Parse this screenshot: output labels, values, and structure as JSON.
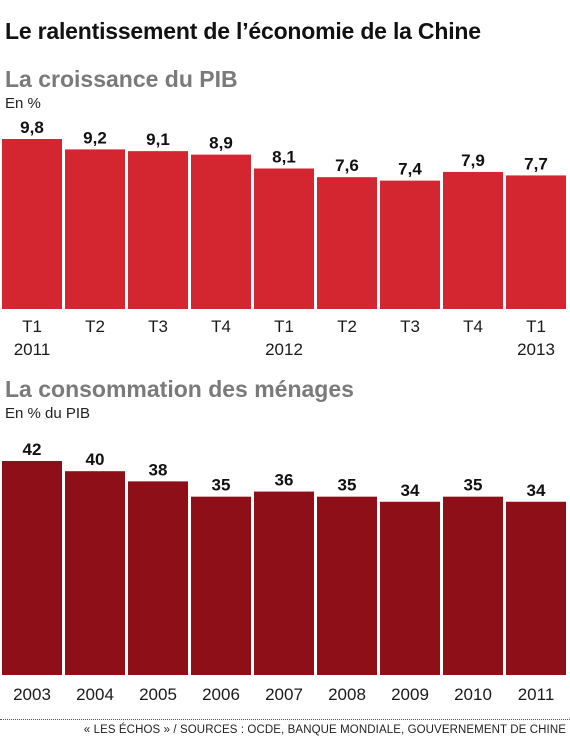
{
  "title": "Le ralentissement de l’économie de la Chine",
  "source": "« LES ÉCHOS » / SOURCES : OCDE, BANQUE MONDIALE, GOUVERNEMENT DE CHINE",
  "colors": {
    "gdp_bar": "#d42630",
    "consumption_bar": "#8e0f18",
    "subtitle": "#7a7a7a"
  },
  "chart_data": [
    {
      "type": "bar",
      "title": "La croissance du PIB",
      "ylabel": "En %",
      "categories": [
        "T1 2011",
        "T2",
        "T3",
        "T4",
        "T1 2012",
        "T2",
        "T3",
        "T4",
        "T1 2013"
      ],
      "tick_labels": [
        [
          "T1",
          "2011"
        ],
        [
          "T2",
          ""
        ],
        [
          "T3",
          ""
        ],
        [
          "T4",
          ""
        ],
        [
          "T1",
          "2012"
        ],
        [
          "T2",
          ""
        ],
        [
          "T3",
          ""
        ],
        [
          "T4",
          ""
        ],
        [
          "T1",
          "2013"
        ]
      ],
      "values": [
        9.8,
        9.2,
        9.1,
        8.9,
        8.1,
        7.6,
        7.4,
        7.9,
        7.7
      ],
      "value_labels": [
        "9,8",
        "9,2",
        "9,1",
        "8,9",
        "8,1",
        "7,6",
        "7,4",
        "7,9",
        "7,7"
      ],
      "ylim": [
        0,
        9.8
      ],
      "grid": false
    },
    {
      "type": "bar",
      "title": "La consommation des ménages",
      "ylabel": "En % du PIB",
      "categories": [
        "2003",
        "2004",
        "2005",
        "2006",
        "2007",
        "2008",
        "2009",
        "2010",
        "2011"
      ],
      "tick_labels": [
        [
          "2003"
        ],
        [
          "2004"
        ],
        [
          "2005"
        ],
        [
          "2006"
        ],
        [
          "2007"
        ],
        [
          "2008"
        ],
        [
          "2009"
        ],
        [
          "2010"
        ],
        [
          "2011"
        ]
      ],
      "values": [
        42,
        40,
        38,
        35,
        36,
        35,
        34,
        35,
        34
      ],
      "value_labels": [
        "42",
        "40",
        "38",
        "35",
        "36",
        "35",
        "34",
        "35",
        "34"
      ],
      "ylim": [
        0,
        42
      ],
      "grid": false
    }
  ]
}
